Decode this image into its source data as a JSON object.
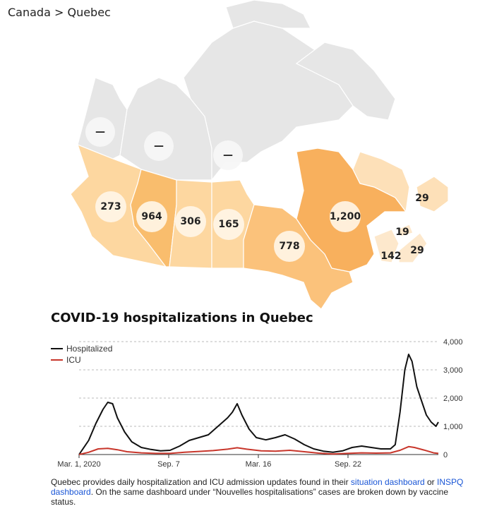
{
  "breadcrumb": {
    "country": "Canada",
    "separator": " > ",
    "province": "Quebec"
  },
  "map": {
    "provinces": [
      {
        "id": "yt",
        "value": "—",
        "color": "#e6e6e6"
      },
      {
        "id": "nt",
        "value": "—",
        "color": "#e6e6e6"
      },
      {
        "id": "nu",
        "value": "—",
        "color": "#e6e6e6"
      },
      {
        "id": "bc",
        "value": "273",
        "color": "#fdd7a0"
      },
      {
        "id": "ab",
        "value": "964",
        "color": "#f9bd6d"
      },
      {
        "id": "sk",
        "value": "306",
        "color": "#fdd7a0"
      },
      {
        "id": "mb",
        "value": "165",
        "color": "#fdd7a0"
      },
      {
        "id": "on",
        "value": "778",
        "color": "#fbc27b"
      },
      {
        "id": "qc",
        "value": "1,200",
        "color": "#f8b05d"
      },
      {
        "id": "nl",
        "value": "29",
        "color": "#fde0b8"
      },
      {
        "id": "nb",
        "value": "142",
        "color": "#fde8cc"
      },
      {
        "id": "pe",
        "value": "19",
        "color": "#fde8cc"
      },
      {
        "id": "ns",
        "value": "29",
        "color": "#fde8cc"
      }
    ]
  },
  "chart_title": "COVID-19 hospitalizations in Quebec",
  "chart_data": {
    "type": "line",
    "x_tick_labels": [
      "Mar. 1, 2020",
      "Sep. 7",
      "Mar. 16",
      "Sep. 22"
    ],
    "y_tick_labels": [
      "0",
      "1,000",
      "2,000",
      "3,000",
      "4,000"
    ],
    "ylim": [
      0,
      4000
    ],
    "xlim": [
      0,
      75
    ],
    "grid": true,
    "legend_position": "top-left",
    "series": [
      {
        "name": "Hospitalized",
        "color": "#111111",
        "points": [
          [
            0,
            0
          ],
          [
            2,
            500
          ],
          [
            3.5,
            1100
          ],
          [
            5,
            1600
          ],
          [
            6,
            1850
          ],
          [
            7,
            1800
          ],
          [
            8,
            1300
          ],
          [
            9.5,
            800
          ],
          [
            11,
            450
          ],
          [
            13,
            250
          ],
          [
            15,
            180
          ],
          [
            17,
            130
          ],
          [
            19,
            150
          ],
          [
            21,
            300
          ],
          [
            23,
            500
          ],
          [
            25,
            600
          ],
          [
            27,
            700
          ],
          [
            29,
            1000
          ],
          [
            31,
            1300
          ],
          [
            32,
            1500
          ],
          [
            33,
            1800
          ],
          [
            34,
            1400
          ],
          [
            35.5,
            900
          ],
          [
            37,
            600
          ],
          [
            39,
            520
          ],
          [
            41,
            600
          ],
          [
            43,
            700
          ],
          [
            45,
            550
          ],
          [
            47,
            350
          ],
          [
            49,
            200
          ],
          [
            51,
            120
          ],
          [
            53,
            80
          ],
          [
            55,
            130
          ],
          [
            57,
            250
          ],
          [
            59,
            300
          ],
          [
            61,
            250
          ],
          [
            63,
            200
          ],
          [
            65,
            200
          ],
          [
            66,
            350
          ],
          [
            67,
            1500
          ],
          [
            68,
            3000
          ],
          [
            68.8,
            3550
          ],
          [
            69.5,
            3300
          ],
          [
            70.5,
            2400
          ],
          [
            71.5,
            1900
          ],
          [
            72.5,
            1400
          ],
          [
            73.5,
            1150
          ],
          [
            74.5,
            1000
          ],
          [
            75,
            1150
          ]
        ]
      },
      {
        "name": "ICU",
        "color": "#c8362b",
        "points": [
          [
            0,
            0
          ],
          [
            2,
            80
          ],
          [
            4,
            200
          ],
          [
            6,
            220
          ],
          [
            8,
            170
          ],
          [
            10,
            100
          ],
          [
            13,
            60
          ],
          [
            16,
            40
          ],
          [
            19,
            40
          ],
          [
            22,
            80
          ],
          [
            25,
            110
          ],
          [
            28,
            140
          ],
          [
            31,
            190
          ],
          [
            33,
            240
          ],
          [
            35,
            190
          ],
          [
            38,
            130
          ],
          [
            41,
            120
          ],
          [
            44,
            150
          ],
          [
            47,
            100
          ],
          [
            50,
            50
          ],
          [
            53,
            20
          ],
          [
            56,
            40
          ],
          [
            59,
            60
          ],
          [
            62,
            50
          ],
          [
            65,
            60
          ],
          [
            67,
            150
          ],
          [
            68.8,
            280
          ],
          [
            70,
            250
          ],
          [
            72,
            160
          ],
          [
            74,
            60
          ],
          [
            75,
            40
          ]
        ]
      }
    ]
  },
  "note": {
    "text1": "Quebec provides daily hospitalization and ICU admission updates found in their ",
    "link1": "situation dashboard",
    "text2": " or ",
    "link2": "INSPQ dashboard",
    "text3": ". On the same dashboard under “Nouvelles hospitalisations” cases are broken down by vaccine status."
  }
}
